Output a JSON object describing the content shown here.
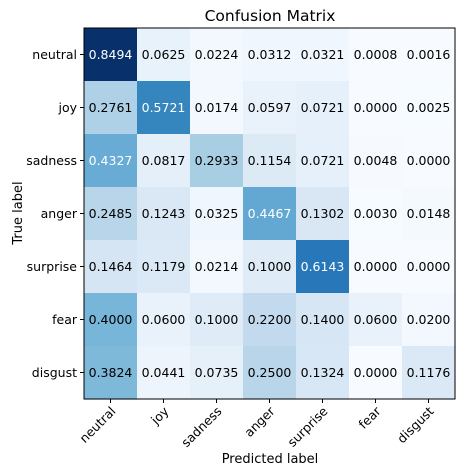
{
  "chart_data": {
    "type": "heatmap",
    "title": "Confusion Matrix",
    "xlabel": "Predicted label",
    "ylabel": "True label",
    "x_categories": [
      "neutral",
      "joy",
      "sadness",
      "anger",
      "surprise",
      "fear",
      "disgust"
    ],
    "y_categories": [
      "neutral",
      "joy",
      "sadness",
      "anger",
      "surprise",
      "fear",
      "disgust"
    ],
    "values": [
      [
        0.8494,
        0.0625,
        0.0224,
        0.0312,
        0.0321,
        0.0008,
        0.0016
      ],
      [
        0.2761,
        0.5721,
        0.0174,
        0.0597,
        0.0721,
        0.0,
        0.0025
      ],
      [
        0.4327,
        0.0817,
        0.2933,
        0.1154,
        0.0721,
        0.0048,
        0.0
      ],
      [
        0.2485,
        0.1243,
        0.0325,
        0.4467,
        0.1302,
        0.003,
        0.0148
      ],
      [
        0.1464,
        0.1179,
        0.0214,
        0.1,
        0.6143,
        0.0,
        0.0
      ],
      [
        0.4,
        0.06,
        0.1,
        0.22,
        0.14,
        0.06,
        0.02
      ],
      [
        0.3824,
        0.0441,
        0.0735,
        0.25,
        0.1324,
        0.0,
        0.1176
      ]
    ],
    "value_format": "4 decimals",
    "colormap": "Blues",
    "colormap_stops": [
      "#f7fbff",
      "#deebf7",
      "#c6dbef",
      "#9ecae1",
      "#6baed6",
      "#4292c6",
      "#2171b5",
      "#08519c",
      "#08306b"
    ],
    "label_color_dark": "#000000",
    "label_color_light": "#ffffff",
    "grid": false,
    "x_tick_rotation_deg": 45
  }
}
